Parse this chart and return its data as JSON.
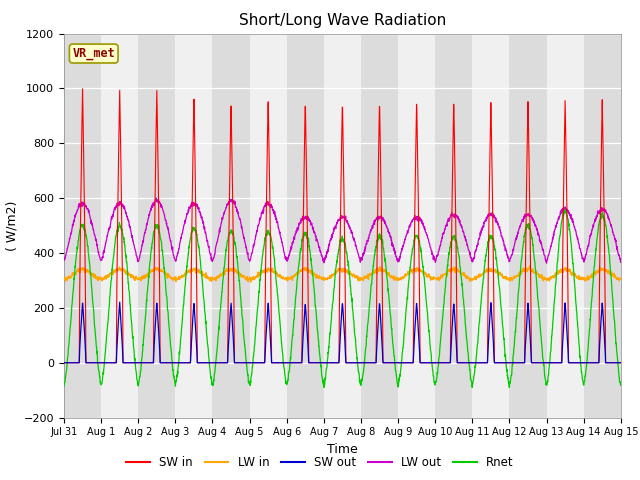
{
  "title": "Short/Long Wave Radiation",
  "xlabel": "Time",
  "ylabel": "( W/m2)",
  "ylim": [
    -200,
    1200
  ],
  "n_days": 15,
  "pts_per_day": 144,
  "annotation": "VR_met",
  "annotation_color": "#8B0000",
  "annotation_bg": "#FFFFCC",
  "annotation_border": "#999900",
  "fig_bg": "#FFFFFF",
  "plot_bg_light": "#F0F0F0",
  "plot_bg_dark": "#DCDCDC",
  "sw_in_color": "#FF0000",
  "lw_in_color": "#FFA500",
  "sw_out_color": "#0000CC",
  "lw_out_color": "#CC00CC",
  "rnet_color": "#00CC00",
  "x_tick_labels": [
    "Jul 31",
    "Aug 1",
    "Aug 2",
    "Aug 3",
    "Aug 4",
    "Aug 5",
    "Aug 6",
    "Aug 7",
    "Aug 8",
    "Aug 9",
    "Aug 10",
    "Aug 11",
    "Aug 12",
    "Aug 13",
    "Aug 14",
    "Aug 15"
  ],
  "sw_in_peaks": [
    1000,
    1000,
    1000,
    975,
    950,
    970,
    960,
    960,
    960,
    960,
    960,
    960,
    960,
    960,
    960
  ],
  "lw_out_peaks": [
    580,
    580,
    590,
    580,
    590,
    580,
    530,
    530,
    530,
    530,
    540,
    540,
    540,
    560,
    560
  ],
  "rnet_peaks": [
    500,
    500,
    500,
    490,
    480,
    480,
    470,
    450,
    460,
    460,
    460,
    460,
    500,
    550,
    540
  ],
  "sw_out_peak": 220,
  "lw_in_base": 305,
  "lw_in_range": 35,
  "lw_out_night": 370,
  "rnet_night": -80
}
